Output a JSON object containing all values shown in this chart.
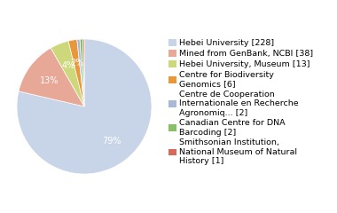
{
  "labels": [
    "Hebei University [228]",
    "Mined from GenBank, NCBI [38]",
    "Hebei University, Museum [13]",
    "Centre for Biodiversity\nGenomics [6]",
    "Centre de Cooperation\nInternationale en Recherche\nAgronomiq... [2]",
    "Canadian Centre for DNA\nBarcoding [2]",
    "Smithsonian Institution,\nNational Museum of Natural\nHistory [1]"
  ],
  "values": [
    228,
    38,
    13,
    6,
    2,
    2,
    1
  ],
  "colors": [
    "#c8d4e8",
    "#e8a898",
    "#ccd87a",
    "#e89838",
    "#a8b8d8",
    "#88c068",
    "#d86858"
  ],
  "background_color": "#ffffff",
  "startangle": 90,
  "legend_fontsize": 6.8,
  "pct_fontsize": 7
}
